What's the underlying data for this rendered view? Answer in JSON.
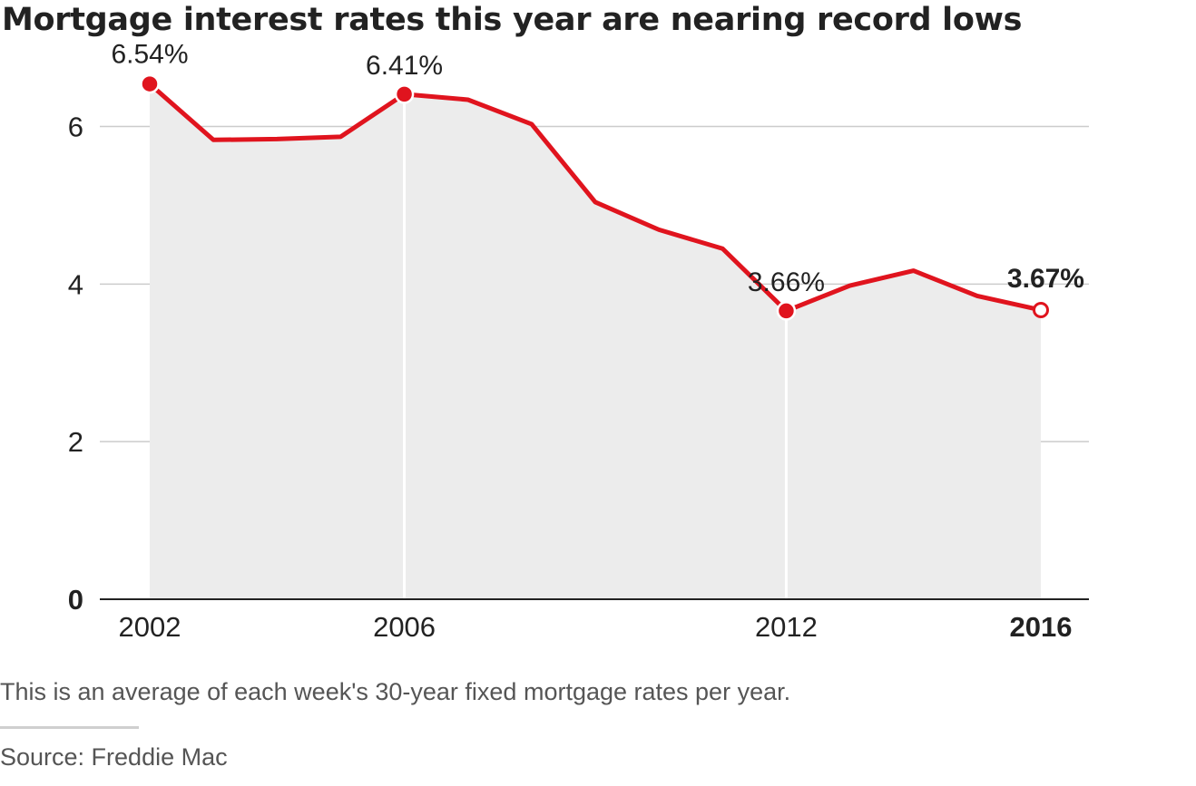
{
  "title": "Mortgage interest rates this year are nearing record lows",
  "note": "This is an average of each week's 30-year fixed mortgage rates per year.",
  "source": "Source: Freddie Mac",
  "colors": {
    "line": "#e0141e",
    "area": "#ececec",
    "grid": "#cccccc",
    "axis": "#222222"
  },
  "chart_data": {
    "type": "area",
    "x": [
      2002,
      2003,
      2004,
      2005,
      2006,
      2007,
      2008,
      2009,
      2010,
      2011,
      2012,
      2013,
      2014,
      2015,
      2016
    ],
    "series": [
      {
        "values": [
          6.54,
          5.83,
          5.84,
          5.87,
          6.41,
          6.34,
          6.03,
          5.04,
          4.69,
          4.45,
          3.66,
          3.98,
          4.17,
          3.85,
          3.67
        ]
      }
    ],
    "xlim": [
      2002,
      2016
    ],
    "ylim": [
      0,
      6.8
    ],
    "y_ticks": [
      {
        "value": 0,
        "label": "0",
        "bold": true
      },
      {
        "value": 2,
        "label": "2",
        "bold": false
      },
      {
        "value": 4,
        "label": "4",
        "bold": false
      },
      {
        "value": 6,
        "label": "6",
        "bold": false
      }
    ],
    "x_ticks": [
      {
        "value": 2002,
        "label": "2002",
        "bold": false
      },
      {
        "value": 2006,
        "label": "2006",
        "bold": false
      },
      {
        "value": 2012,
        "label": "2012",
        "bold": false
      },
      {
        "value": 2016,
        "label": "2016",
        "bold": true
      }
    ],
    "grid": true,
    "annotations": [
      {
        "x": 2002,
        "y": 6.54,
        "label": "6.54%",
        "bold": false,
        "marker": "filled"
      },
      {
        "x": 2006,
        "y": 6.41,
        "label": "6.41%",
        "bold": false,
        "marker": "filled"
      },
      {
        "x": 2012,
        "y": 3.66,
        "label": "3.66%",
        "bold": false,
        "marker": "filled"
      },
      {
        "x": 2016,
        "y": 3.67,
        "label": "3.67%",
        "bold": true,
        "marker": "open"
      }
    ]
  }
}
